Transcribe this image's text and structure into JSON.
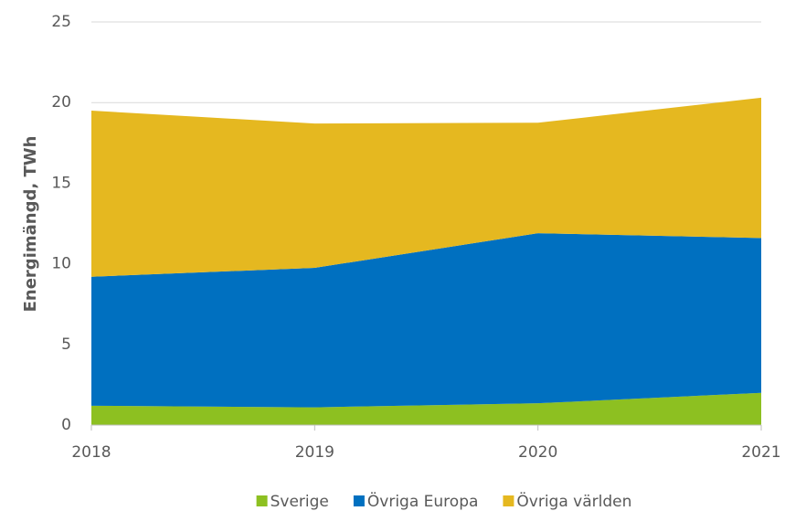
{
  "chart_data": {
    "type": "stacked_area",
    "y_label": "Energimängd, TWh",
    "categories": [
      "2018",
      "2019",
      "2020",
      "2021"
    ],
    "series": [
      {
        "name": "Sverige",
        "color": "#8dc021",
        "values": [
          1.2,
          1.1,
          1.35,
          2.0
        ]
      },
      {
        "name": "Övriga Europa",
        "color": "#0070c0",
        "values": [
          8.0,
          8.65,
          10.55,
          9.6
        ]
      },
      {
        "name": "Övriga världen",
        "color": "#e5b820",
        "values": [
          10.3,
          8.95,
          6.85,
          8.7
        ]
      }
    ],
    "ylim": [
      0,
      25
    ],
    "yticks": [
      0,
      5,
      10,
      15,
      20,
      25
    ],
    "grid": true,
    "legend": "bottom"
  }
}
